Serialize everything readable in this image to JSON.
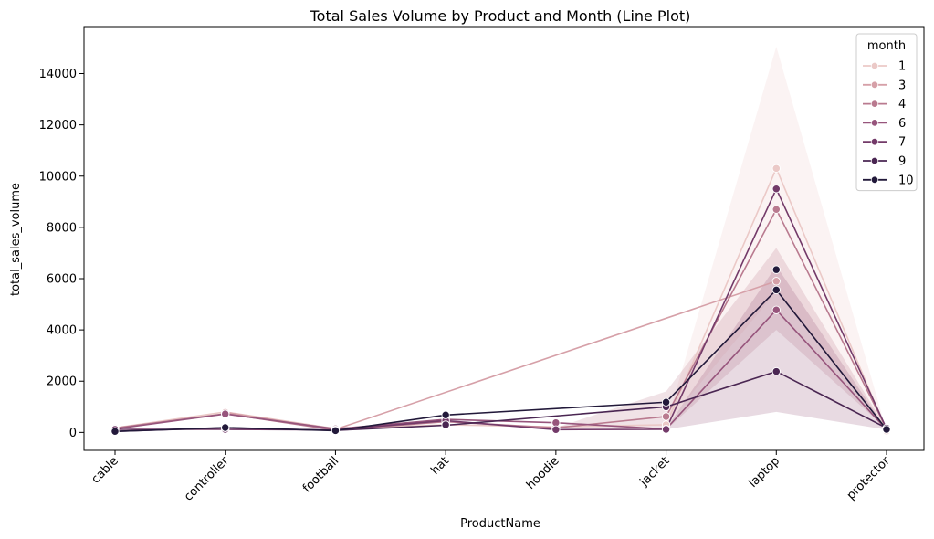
{
  "chart_data": {
    "type": "line",
    "title": "Total Sales Volume by Product and Month (Line Plot)",
    "xlabel": "ProductName",
    "ylabel": "total_sales_volume",
    "categories": [
      "cable",
      "controller",
      "football",
      "hat",
      "hoodie",
      "jacket",
      "laptop",
      "protector"
    ],
    "ylim": [
      -700,
      15800
    ],
    "yticks": [
      0,
      2000,
      4000,
      6000,
      8000,
      10000,
      12000,
      14000
    ],
    "grid": false,
    "legend": {
      "title": "month",
      "placement": "top-right"
    },
    "series": [
      {
        "name": "1",
        "color": "#ebc9c7",
        "values": [
          180,
          800,
          150,
          300,
          220,
          300,
          10300,
          60
        ]
      },
      {
        "name": "3",
        "color": "#d6a0a8",
        "values": [
          null,
          780,
          120,
          null,
          null,
          null,
          5900,
          null
        ]
      },
      {
        "name": "4",
        "color": "#b97a8f",
        "values": [
          170,
          730,
          90,
          420,
          180,
          620,
          8700,
          140
        ]
      },
      {
        "name": "6",
        "color": "#97557c",
        "values": [
          140,
          720,
          140,
          510,
          380,
          130,
          4780,
          110
        ]
      },
      {
        "name": "7",
        "color": "#733a69",
        "values": [
          120,
          120,
          100,
          460,
          110,
          120,
          9500,
          150
        ]
      },
      {
        "name": "9",
        "color": "#4a2652",
        "values": [
          40,
          180,
          80,
          280,
          null,
          1000,
          2380,
          170
        ]
      },
      {
        "name": "10",
        "color": "#22193a",
        "values": [
          40,
          190,
          70,
          680,
          null,
          1180,
          5560,
          120
        ]
      }
    ],
    "extra_points": [
      {
        "series": "10",
        "category": "laptop",
        "value": 6350
      },
      {
        "series": "9",
        "category": "hat",
        "value": 300
      }
    ],
    "confidence_bands": [
      {
        "series": "1",
        "lower": [
          180,
          800,
          150,
          300,
          220,
          300,
          5500,
          60
        ],
        "upper": [
          180,
          800,
          150,
          300,
          220,
          300,
          15050,
          60
        ]
      },
      {
        "series": "4",
        "lower": [
          170,
          730,
          90,
          420,
          180,
          100,
          4000,
          140
        ],
        "upper": [
          170,
          730,
          90,
          420,
          180,
          1600,
          7200,
          140
        ]
      },
      {
        "series": "6",
        "lower": [
          140,
          720,
          140,
          510,
          380,
          120,
          800,
          110
        ],
        "upper": [
          140,
          720,
          140,
          510,
          380,
          140,
          6500,
          110
        ]
      }
    ]
  }
}
